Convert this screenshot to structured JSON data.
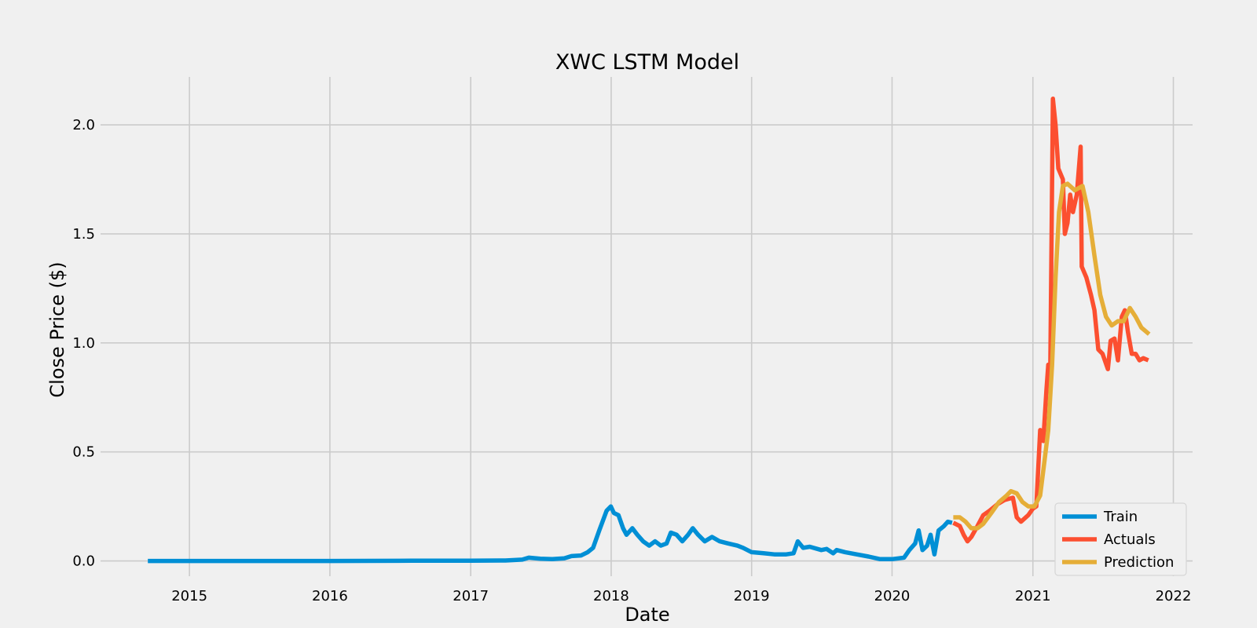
{
  "chart_data": {
    "type": "line",
    "title": "XWC LSTM Model",
    "xlabel": "Date",
    "ylabel": "Close Price ($)",
    "xlim": [
      "2014-05-15",
      "2022-02-20"
    ],
    "ylim": [
      -0.07,
      2.22
    ],
    "x_ticks": [
      "2015",
      "2016",
      "2017",
      "2018",
      "2019",
      "2020",
      "2021",
      "2022"
    ],
    "y_ticks": [
      "0.0",
      "0.5",
      "1.0",
      "1.5",
      "2.0"
    ],
    "grid": true,
    "legend_position": "lower right",
    "series": [
      {
        "name": "Train",
        "color": "#008fd5",
        "points": [
          [
            "2014-09-15",
            0.0
          ],
          [
            "2015-01-01",
            0.0
          ],
          [
            "2016-01-01",
            0.0
          ],
          [
            "2016-08-01",
            0.001
          ],
          [
            "2017-01-01",
            0.001
          ],
          [
            "2017-04-01",
            0.002
          ],
          [
            "2017-05-15",
            0.006
          ],
          [
            "2017-06-01",
            0.015
          ],
          [
            "2017-07-01",
            0.01
          ],
          [
            "2017-08-01",
            0.008
          ],
          [
            "2017-09-01",
            0.012
          ],
          [
            "2017-09-20",
            0.022
          ],
          [
            "2017-10-15",
            0.025
          ],
          [
            "2017-11-01",
            0.04
          ],
          [
            "2017-11-15",
            0.06
          ],
          [
            "2017-12-01",
            0.14
          ],
          [
            "2017-12-20",
            0.23
          ],
          [
            "2017-12-31",
            0.25
          ],
          [
            "2018-01-08",
            0.22
          ],
          [
            "2018-01-20",
            0.21
          ],
          [
            "2018-02-01",
            0.15
          ],
          [
            "2018-02-10",
            0.12
          ],
          [
            "2018-02-25",
            0.15
          ],
          [
            "2018-03-10",
            0.12
          ],
          [
            "2018-03-25",
            0.09
          ],
          [
            "2018-04-10",
            0.07
          ],
          [
            "2018-04-25",
            0.09
          ],
          [
            "2018-05-10",
            0.07
          ],
          [
            "2018-05-25",
            0.08
          ],
          [
            "2018-06-05",
            0.13
          ],
          [
            "2018-06-20",
            0.12
          ],
          [
            "2018-07-05",
            0.09
          ],
          [
            "2018-07-20",
            0.12
          ],
          [
            "2018-08-01",
            0.15
          ],
          [
            "2018-08-15",
            0.12
          ],
          [
            "2018-09-01",
            0.09
          ],
          [
            "2018-09-20",
            0.11
          ],
          [
            "2018-10-10",
            0.09
          ],
          [
            "2018-11-01",
            0.08
          ],
          [
            "2018-11-25",
            0.07
          ],
          [
            "2018-12-10",
            0.06
          ],
          [
            "2019-01-01",
            0.04
          ],
          [
            "2019-02-01",
            0.035
          ],
          [
            "2019-03-01",
            0.03
          ],
          [
            "2019-04-01",
            0.03
          ],
          [
            "2019-04-20",
            0.035
          ],
          [
            "2019-05-01",
            0.09
          ],
          [
            "2019-05-15",
            0.06
          ],
          [
            "2019-06-01",
            0.065
          ],
          [
            "2019-07-01",
            0.05
          ],
          [
            "2019-07-15",
            0.055
          ],
          [
            "2019-08-01",
            0.035
          ],
          [
            "2019-08-10",
            0.05
          ],
          [
            "2019-09-01",
            0.04
          ],
          [
            "2019-10-01",
            0.03
          ],
          [
            "2019-11-01",
            0.02
          ],
          [
            "2019-12-01",
            0.008
          ],
          [
            "2020-01-01",
            0.008
          ],
          [
            "2020-02-01",
            0.015
          ],
          [
            "2020-02-15",
            0.05
          ],
          [
            "2020-03-01",
            0.08
          ],
          [
            "2020-03-10",
            0.14
          ],
          [
            "2020-03-20",
            0.05
          ],
          [
            "2020-04-01",
            0.07
          ],
          [
            "2020-04-10",
            0.12
          ],
          [
            "2020-04-20",
            0.03
          ],
          [
            "2020-05-01",
            0.14
          ],
          [
            "2020-05-15",
            0.16
          ],
          [
            "2020-05-25",
            0.18
          ],
          [
            "2020-06-05",
            0.175
          ]
        ]
      },
      {
        "name": "Actuals",
        "color": "#fc4f30",
        "points": [
          [
            "2020-06-08",
            0.175
          ],
          [
            "2020-06-25",
            0.16
          ],
          [
            "2020-07-05",
            0.12
          ],
          [
            "2020-07-15",
            0.09
          ],
          [
            "2020-07-25",
            0.11
          ],
          [
            "2020-08-10",
            0.16
          ],
          [
            "2020-08-25",
            0.21
          ],
          [
            "2020-09-10",
            0.23
          ],
          [
            "2020-10-01",
            0.26
          ],
          [
            "2020-10-20",
            0.28
          ],
          [
            "2020-11-10",
            0.29
          ],
          [
            "2020-11-20",
            0.2
          ],
          [
            "2020-12-01",
            0.18
          ],
          [
            "2020-12-20",
            0.21
          ],
          [
            "2021-01-01",
            0.24
          ],
          [
            "2021-01-10",
            0.25
          ],
          [
            "2021-01-20",
            0.6
          ],
          [
            "2021-01-28",
            0.55
          ],
          [
            "2021-02-05",
            0.78
          ],
          [
            "2021-02-10",
            0.9
          ],
          [
            "2021-02-15",
            0.85
          ],
          [
            "2021-02-22",
            2.12
          ],
          [
            "2021-03-01",
            2.0
          ],
          [
            "2021-03-08",
            1.8
          ],
          [
            "2021-03-20",
            1.75
          ],
          [
            "2021-03-25",
            1.5
          ],
          [
            "2021-04-01",
            1.55
          ],
          [
            "2021-04-08",
            1.68
          ],
          [
            "2021-04-15",
            1.6
          ],
          [
            "2021-04-25",
            1.68
          ],
          [
            "2021-05-05",
            1.9
          ],
          [
            "2021-05-08",
            1.35
          ],
          [
            "2021-05-20",
            1.3
          ],
          [
            "2021-06-01",
            1.22
          ],
          [
            "2021-06-10",
            1.15
          ],
          [
            "2021-06-20",
            0.97
          ],
          [
            "2021-07-01",
            0.95
          ],
          [
            "2021-07-15",
            0.88
          ],
          [
            "2021-07-22",
            1.01
          ],
          [
            "2021-08-01",
            1.02
          ],
          [
            "2021-08-10",
            0.92
          ],
          [
            "2021-08-20",
            1.12
          ],
          [
            "2021-08-28",
            1.15
          ],
          [
            "2021-09-05",
            1.05
          ],
          [
            "2021-09-15",
            0.95
          ],
          [
            "2021-09-25",
            0.95
          ],
          [
            "2021-10-05",
            0.92
          ],
          [
            "2021-10-15",
            0.93
          ],
          [
            "2021-10-28",
            0.92
          ]
        ]
      },
      {
        "name": "Prediction",
        "color": "#e5ae38",
        "points": [
          [
            "2020-06-08",
            0.2
          ],
          [
            "2020-06-25",
            0.2
          ],
          [
            "2020-07-10",
            0.18
          ],
          [
            "2020-07-25",
            0.15
          ],
          [
            "2020-08-10",
            0.15
          ],
          [
            "2020-08-25",
            0.17
          ],
          [
            "2020-09-15",
            0.22
          ],
          [
            "2020-10-05",
            0.27
          ],
          [
            "2020-10-25",
            0.3
          ],
          [
            "2020-11-05",
            0.32
          ],
          [
            "2020-11-20",
            0.31
          ],
          [
            "2020-12-05",
            0.27
          ],
          [
            "2020-12-20",
            0.25
          ],
          [
            "2021-01-05",
            0.25
          ],
          [
            "2021-01-20",
            0.3
          ],
          [
            "2021-02-01",
            0.47
          ],
          [
            "2021-02-10",
            0.6
          ],
          [
            "2021-02-20",
            0.9
          ],
          [
            "2021-03-01",
            1.3
          ],
          [
            "2021-03-10",
            1.6
          ],
          [
            "2021-03-20",
            1.72
          ],
          [
            "2021-04-01",
            1.73
          ],
          [
            "2021-04-20",
            1.7
          ],
          [
            "2021-05-10",
            1.72
          ],
          [
            "2021-05-25",
            1.6
          ],
          [
            "2021-06-10",
            1.4
          ],
          [
            "2021-06-25",
            1.22
          ],
          [
            "2021-07-10",
            1.12
          ],
          [
            "2021-07-25",
            1.08
          ],
          [
            "2021-08-10",
            1.1
          ],
          [
            "2021-08-25",
            1.1
          ],
          [
            "2021-09-10",
            1.16
          ],
          [
            "2021-09-25",
            1.12
          ],
          [
            "2021-10-10",
            1.07
          ],
          [
            "2021-10-30",
            1.04
          ]
        ]
      }
    ]
  }
}
